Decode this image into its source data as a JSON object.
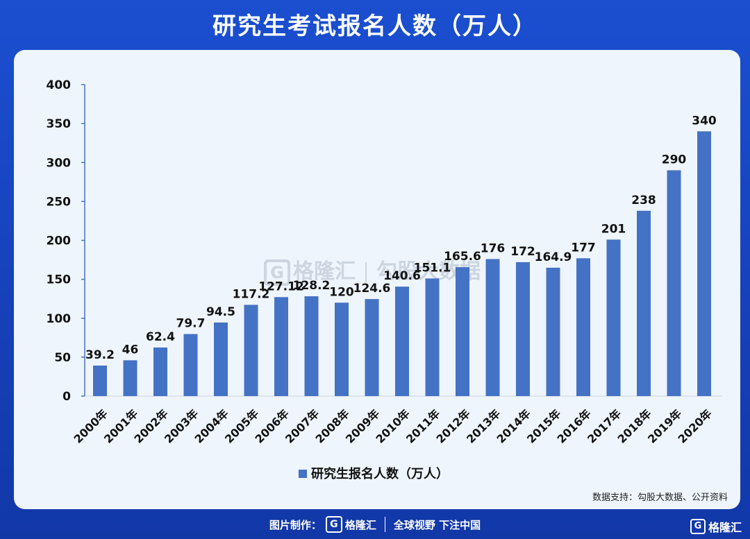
{
  "header": {
    "title": "研究生考试报名人数（万人）"
  },
  "watermark": {
    "logo_glyph": "G",
    "brand": "格隆汇",
    "text": "勾股大数据"
  },
  "source": "数据支持：勾股大数据、公开资料",
  "footer": {
    "made_by": "图片制作：",
    "logo_glyph": "G",
    "brand": "格隆汇",
    "slogan": "全球视野 下注中国"
  },
  "corner_logo": {
    "glyph": "G",
    "text": "格隆汇"
  },
  "colors": {
    "bar": "#4472c4",
    "background": "#1b4fd0",
    "panel": "#eef5fc"
  },
  "chart_data": {
    "type": "bar",
    "categories": [
      "2000年",
      "2001年",
      "2002年",
      "2003年",
      "2004年",
      "2005年",
      "2006年",
      "2007年",
      "2008年",
      "2009年",
      "2010年",
      "2011年",
      "2012年",
      "2013年",
      "2014年",
      "2015年",
      "2016年",
      "2017年",
      "2018年",
      "2019年",
      "2020年"
    ],
    "series": [
      {
        "name": "研究生报名人数（万人）",
        "values": [
          39.2,
          46,
          62.4,
          79.7,
          94.5,
          117.2,
          127.12,
          128.2,
          120,
          124.6,
          140.6,
          151.1,
          165.6,
          176,
          172,
          164.9,
          177,
          201,
          238,
          290,
          340
        ],
        "labels": [
          "39.2",
          "46",
          "62.4",
          "79.7",
          "94.5",
          "117.2",
          "127.12",
          "128.2",
          "120",
          "124.6",
          "140.6",
          "151.1",
          "165.6",
          "176",
          "172",
          "164.9",
          "177",
          "201",
          "238",
          "290",
          "340"
        ]
      }
    ],
    "ylim": [
      0,
      400
    ],
    "yticks": [
      0,
      50,
      100,
      150,
      200,
      250,
      300,
      350,
      400
    ],
    "grid": false,
    "legend_position": "bottom"
  }
}
